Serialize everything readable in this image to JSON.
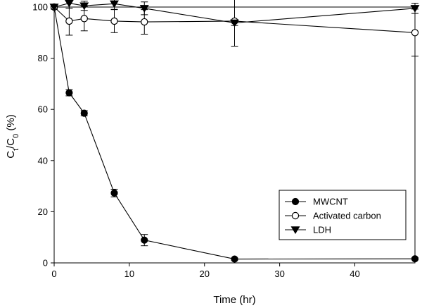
{
  "chart_data": {
    "type": "line",
    "xlabel": "Time (hr)",
    "ylabel": "Ct/C0 (%)",
    "ylabel_parts": {
      "base1": "C",
      "sub1": "t",
      "slash": "/C",
      "sub2": "0",
      "tail": " (%)"
    },
    "xlim": [
      0,
      48
    ],
    "ylim": [
      0,
      100
    ],
    "x_ticks": [
      0,
      10,
      20,
      30,
      40
    ],
    "y_ticks": [
      0,
      20,
      40,
      60,
      80,
      100
    ],
    "x_tick_labels": [
      "0",
      "10",
      "20",
      "30",
      "40"
    ],
    "y_tick_labels": [
      "0",
      "20",
      "40",
      "60",
      "80",
      "100"
    ],
    "grid": false,
    "legend_position": "bottom-right",
    "series": [
      {
        "name": "MWCNT",
        "marker": "filled-circle",
        "x": [
          0,
          2,
          4,
          8,
          12,
          24,
          48
        ],
        "y": [
          100,
          66.5,
          58.5,
          27.3,
          8.9,
          1.5,
          1.6
        ],
        "err": [
          0.8,
          1.2,
          1.0,
          1.5,
          2.2,
          0.4,
          0.4
        ]
      },
      {
        "name": "Activated carbon",
        "marker": "open-circle",
        "x": [
          0,
          2,
          4,
          8,
          12,
          24,
          48
        ],
        "y": [
          100,
          94.5,
          95.5,
          94.5,
          94.2,
          94.5,
          90.0
        ],
        "err": [
          0.8,
          5.5,
          4.8,
          4.5,
          4.8,
          9.8,
          9.2
        ]
      },
      {
        "name": "LDH",
        "marker": "filled-triangle-down",
        "x": [
          0,
          2,
          4,
          8,
          12,
          24,
          48
        ],
        "y": [
          100,
          101.5,
          100.5,
          101.3,
          99.5,
          93.8,
          99.5
        ],
        "err": [
          0.8,
          2.0,
          1.8,
          2.2,
          2.5,
          1.0,
          2.0
        ]
      }
    ]
  }
}
